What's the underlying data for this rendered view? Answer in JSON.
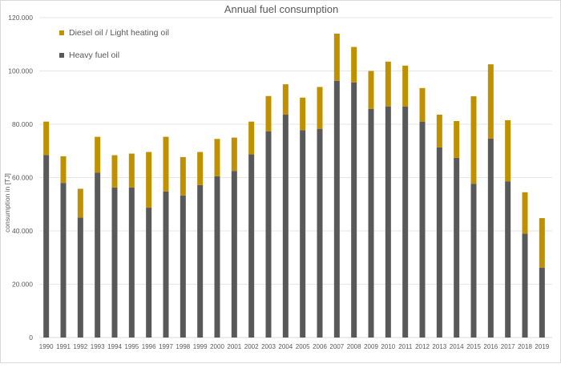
{
  "chart_data": {
    "type": "bar",
    "stacked": true,
    "title": "Annual fuel consumption",
    "xlabel": "",
    "ylabel": "consumption in [TJ]",
    "ylim": [
      0,
      120000
    ],
    "yticks": [
      0,
      20000,
      40000,
      60000,
      80000,
      100000,
      120000
    ],
    "ytick_labels": [
      "0",
      "20.000",
      "40.000",
      "60.000",
      "80.000",
      "100.000",
      "120.000"
    ],
    "grid": true,
    "legend_position": "top-left",
    "categories": [
      "1990",
      "1991",
      "1992",
      "1993",
      "1994",
      "1995",
      "1996",
      "1997",
      "1998",
      "1999",
      "2000",
      "2001",
      "2002",
      "2003",
      "2004",
      "2005",
      "2006",
      "2007",
      "2008",
      "2009",
      "2010",
      "2011",
      "2012",
      "2013",
      "2014",
      "2015",
      "2016",
      "2017",
      "2018",
      "2019"
    ],
    "series": [
      {
        "name": "Heavy fuel oil",
        "color": "#595959",
        "values": [
          68500,
          58000,
          45000,
          61900,
          56300,
          56300,
          48700,
          54800,
          53300,
          57200,
          60500,
          62500,
          68700,
          77300,
          83600,
          77800,
          78300,
          96300,
          95700,
          85800,
          86700,
          86700,
          81000,
          71300,
          67400,
          57700,
          74600,
          58600,
          39000,
          26200
        ]
      },
      {
        "name": "Diesel oil / Light heating oil",
        "color": "#bf9000",
        "values": [
          12500,
          10000,
          10800,
          13400,
          12100,
          12700,
          20900,
          20500,
          14400,
          12400,
          14000,
          12500,
          12300,
          13300,
          11400,
          12200,
          15700,
          17700,
          13300,
          14200,
          16800,
          15300,
          12600,
          12300,
          13800,
          32800,
          27900,
          22900,
          15500,
          18600
        ]
      }
    ]
  }
}
